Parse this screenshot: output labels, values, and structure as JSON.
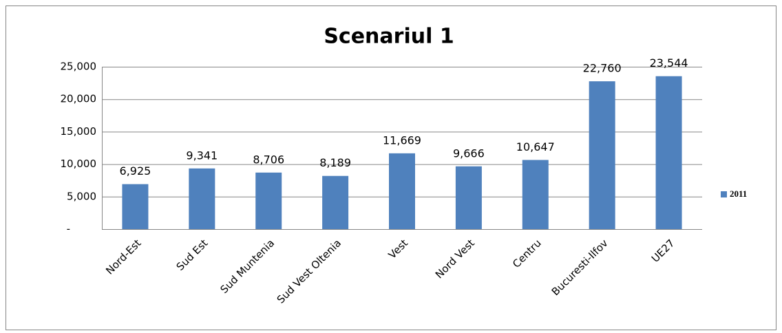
{
  "chart_data": {
    "type": "bar",
    "title": "Scenariul 1",
    "categories": [
      "Nord-Est",
      "Sud Est",
      "Sud Muntenia",
      "Sud Vest Oltenia",
      "Vest",
      "Nord Vest",
      "Centru",
      "Bucuresti-Ilfov",
      "UE27"
    ],
    "series": [
      {
        "name": "2011",
        "color": "#4f81bd",
        "values": [
          6925,
          9341,
          8706,
          8189,
          11669,
          9666,
          10647,
          22760,
          23544
        ],
        "value_labels": [
          "6,925",
          "9,341",
          "8,706",
          "8,189",
          "11,669",
          "9,666",
          "10,647",
          "22,760",
          "23,544"
        ]
      }
    ],
    "ylim": [
      0,
      25000
    ],
    "yticks": [
      {
        "value": 0,
        "label": "-"
      },
      {
        "value": 5000,
        "label": "5,000"
      },
      {
        "value": 10000,
        "label": "10,000"
      },
      {
        "value": 15000,
        "label": "15,000"
      },
      {
        "value": 20000,
        "label": "20,000"
      },
      {
        "value": 25000,
        "label": "25,000"
      }
    ],
    "grid": true,
    "legend": "right"
  }
}
